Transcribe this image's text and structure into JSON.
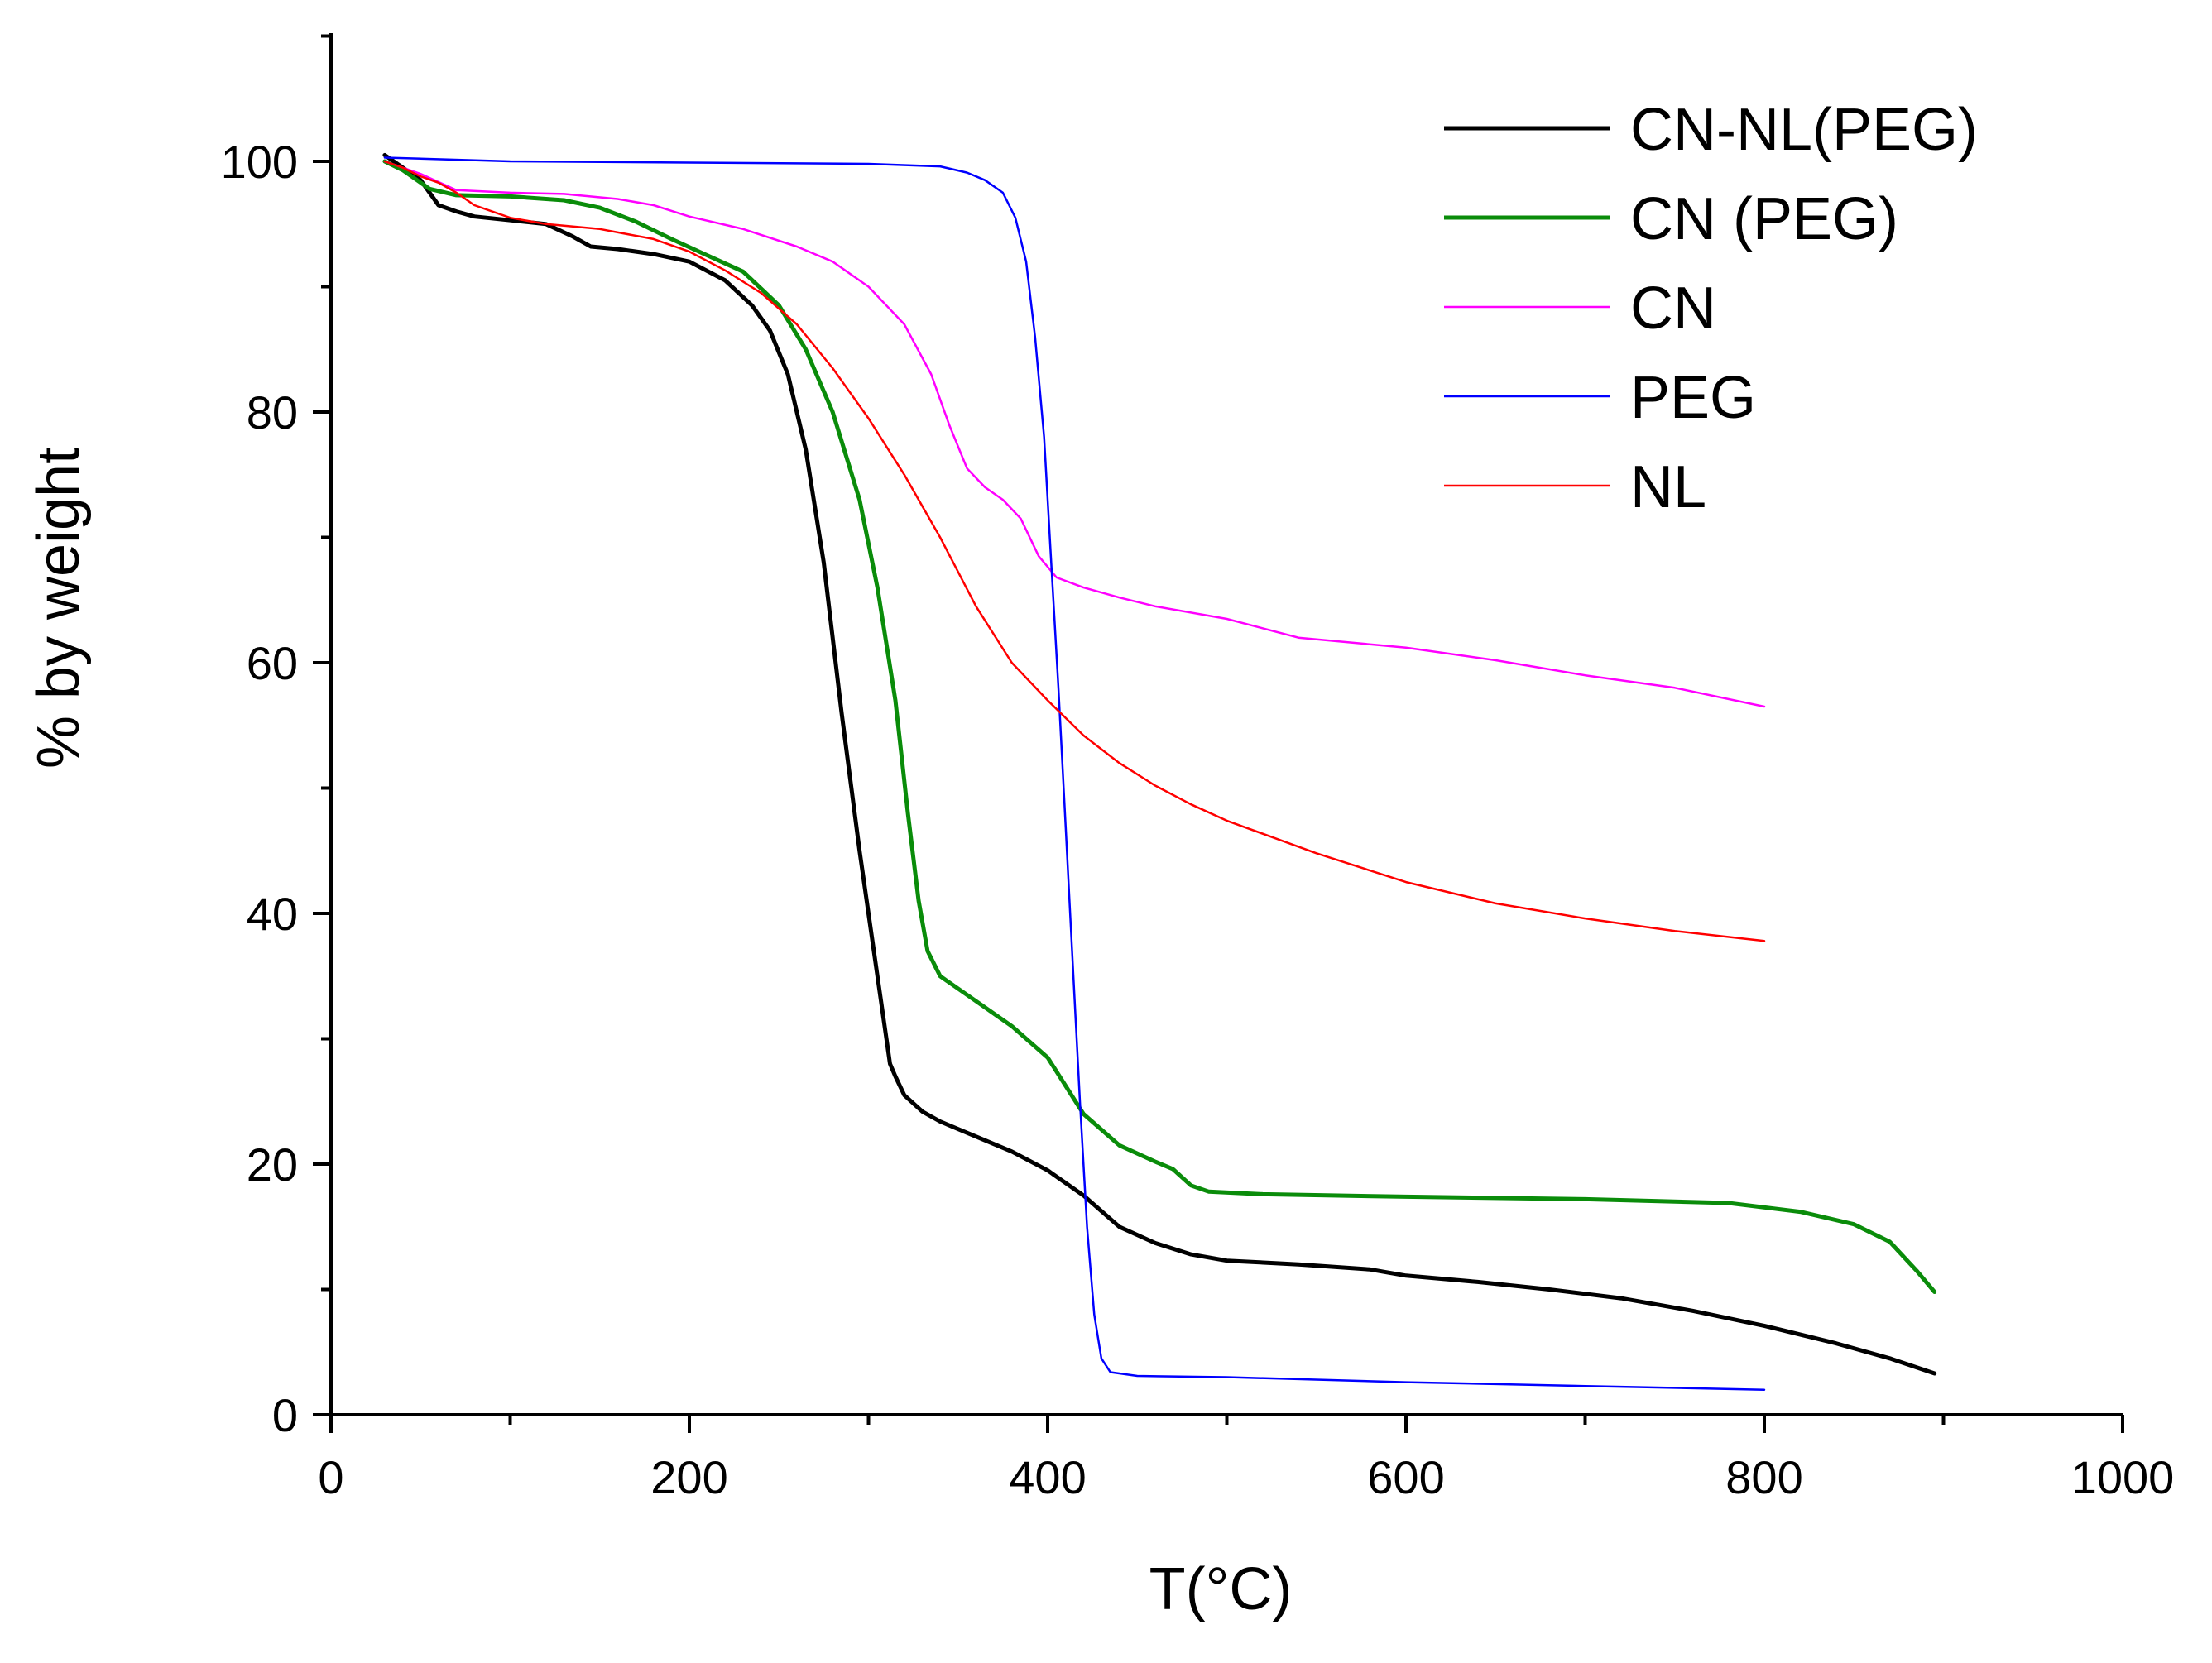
{
  "chart_data": {
    "type": "line",
    "title": "",
    "xlabel": "T(°C)",
    "ylabel": "% by weight",
    "xlim": [
      0,
      1000
    ],
    "ylim": [
      0,
      110
    ],
    "x_ticks": [
      0,
      200,
      400,
      600,
      800,
      1000
    ],
    "x_tick_labels": [
      "0",
      "200",
      "400",
      "600",
      "800",
      "1000"
    ],
    "y_ticks": [
      0,
      20,
      40,
      60,
      80,
      100
    ],
    "y_tick_labels": [
      "0",
      "20",
      "40",
      "60",
      "80",
      "100"
    ],
    "grid": false,
    "legend_position": "top-right",
    "series": [
      {
        "name": "CN-NL(PEG)",
        "color": "#000000",
        "weight": "thick",
        "points": [
          [
            30,
            100.5
          ],
          [
            40,
            99.5
          ],
          [
            50,
            98.5
          ],
          [
            60,
            96.5
          ],
          [
            70,
            96
          ],
          [
            80,
            95.6
          ],
          [
            100,
            95.3
          ],
          [
            120,
            95
          ],
          [
            135,
            94
          ],
          [
            145,
            93.2
          ],
          [
            160,
            93
          ],
          [
            180,
            92.6
          ],
          [
            200,
            92
          ],
          [
            220,
            90.5
          ],
          [
            235,
            88.5
          ],
          [
            245,
            86.5
          ],
          [
            255,
            83
          ],
          [
            265,
            77
          ],
          [
            275,
            68
          ],
          [
            285,
            56
          ],
          [
            295,
            45
          ],
          [
            305,
            35
          ],
          [
            312,
            28
          ],
          [
            315,
            27
          ],
          [
            320,
            25.5
          ],
          [
            330,
            24.2
          ],
          [
            340,
            23.4
          ],
          [
            360,
            22.2
          ],
          [
            380,
            21
          ],
          [
            400,
            19.5
          ],
          [
            420,
            17.5
          ],
          [
            440,
            15
          ],
          [
            460,
            13.7
          ],
          [
            480,
            12.8
          ],
          [
            500,
            12.3
          ],
          [
            540,
            12
          ],
          [
            580,
            11.6
          ],
          [
            600,
            11.1
          ],
          [
            640,
            10.6
          ],
          [
            680,
            10
          ],
          [
            720,
            9.3
          ],
          [
            760,
            8.3
          ],
          [
            800,
            7.1
          ],
          [
            840,
            5.7
          ],
          [
            870,
            4.5
          ],
          [
            895,
            3.3
          ]
        ]
      },
      {
        "name": "CN (PEG)",
        "color": "#0a8c0a",
        "weight": "thick",
        "points": [
          [
            30,
            100
          ],
          [
            40,
            99.3
          ],
          [
            55,
            97.8
          ],
          [
            70,
            97.3
          ],
          [
            100,
            97.2
          ],
          [
            130,
            96.9
          ],
          [
            150,
            96.3
          ],
          [
            170,
            95.2
          ],
          [
            190,
            93.8
          ],
          [
            210,
            92.5
          ],
          [
            230,
            91.2
          ],
          [
            250,
            88.5
          ],
          [
            265,
            85
          ],
          [
            280,
            80
          ],
          [
            295,
            73
          ],
          [
            305,
            66
          ],
          [
            315,
            57
          ],
          [
            322,
            48
          ],
          [
            328,
            41
          ],
          [
            333,
            37
          ],
          [
            340,
            35
          ],
          [
            360,
            33
          ],
          [
            380,
            31
          ],
          [
            400,
            28.5
          ],
          [
            420,
            24
          ],
          [
            440,
            21.5
          ],
          [
            460,
            20.2
          ],
          [
            470,
            19.6
          ],
          [
            480,
            18.3
          ],
          [
            490,
            17.8
          ],
          [
            520,
            17.6
          ],
          [
            600,
            17.4
          ],
          [
            700,
            17.2
          ],
          [
            780,
            16.9
          ],
          [
            820,
            16.2
          ],
          [
            850,
            15.2
          ],
          [
            870,
            13.8
          ],
          [
            885,
            11.5
          ],
          [
            895,
            9.8
          ]
        ]
      },
      {
        "name": "CN",
        "color": "#ff00ff",
        "weight": "thin",
        "points": [
          [
            30,
            100
          ],
          [
            50,
            99
          ],
          [
            70,
            97.7
          ],
          [
            100,
            97.5
          ],
          [
            130,
            97.4
          ],
          [
            160,
            97
          ],
          [
            180,
            96.5
          ],
          [
            200,
            95.6
          ],
          [
            230,
            94.6
          ],
          [
            260,
            93.2
          ],
          [
            280,
            92
          ],
          [
            300,
            90
          ],
          [
            320,
            87
          ],
          [
            335,
            83
          ],
          [
            345,
            79
          ],
          [
            355,
            75.5
          ],
          [
            365,
            74
          ],
          [
            375,
            73
          ],
          [
            385,
            71.5
          ],
          [
            395,
            68.5
          ],
          [
            405,
            66.8
          ],
          [
            420,
            66
          ],
          [
            440,
            65.2
          ],
          [
            460,
            64.5
          ],
          [
            500,
            63.5
          ],
          [
            540,
            62
          ],
          [
            600,
            61.2
          ],
          [
            650,
            60.2
          ],
          [
            700,
            59
          ],
          [
            750,
            58
          ],
          [
            800,
            56.5
          ]
        ]
      },
      {
        "name": "PEG",
        "color": "#0000ff",
        "weight": "thin",
        "points": [
          [
            30,
            100.3
          ],
          [
            100,
            100
          ],
          [
            200,
            99.9
          ],
          [
            300,
            99.8
          ],
          [
            340,
            99.6
          ],
          [
            355,
            99.1
          ],
          [
            365,
            98.5
          ],
          [
            375,
            97.5
          ],
          [
            382,
            95.5
          ],
          [
            388,
            92
          ],
          [
            393,
            86
          ],
          [
            398,
            78
          ],
          [
            402,
            68
          ],
          [
            406,
            58
          ],
          [
            410,
            47
          ],
          [
            414,
            36
          ],
          [
            418,
            25
          ],
          [
            422,
            15
          ],
          [
            426,
            8
          ],
          [
            430,
            4.5
          ],
          [
            435,
            3.4
          ],
          [
            450,
            3.1
          ],
          [
            500,
            3
          ],
          [
            600,
            2.6
          ],
          [
            700,
            2.3
          ],
          [
            800,
            2
          ]
        ]
      },
      {
        "name": "NL",
        "color": "#ff0000",
        "weight": "thin",
        "points": [
          [
            30,
            100
          ],
          [
            40,
            99.5
          ],
          [
            50,
            98.8
          ],
          [
            60,
            98.3
          ],
          [
            70,
            97.5
          ],
          [
            80,
            96.5
          ],
          [
            100,
            95.5
          ],
          [
            120,
            95
          ],
          [
            150,
            94.6
          ],
          [
            180,
            93.8
          ],
          [
            200,
            92.8
          ],
          [
            220,
            91.3
          ],
          [
            240,
            89.5
          ],
          [
            260,
            87
          ],
          [
            280,
            83.5
          ],
          [
            300,
            79.5
          ],
          [
            320,
            75
          ],
          [
            340,
            70
          ],
          [
            360,
            64.5
          ],
          [
            380,
            60
          ],
          [
            400,
            57
          ],
          [
            420,
            54.2
          ],
          [
            440,
            52
          ],
          [
            460,
            50.2
          ],
          [
            480,
            48.7
          ],
          [
            500,
            47.4
          ],
          [
            550,
            44.8
          ],
          [
            600,
            42.5
          ],
          [
            650,
            40.8
          ],
          [
            700,
            39.6
          ],
          [
            750,
            38.6
          ],
          [
            800,
            37.8
          ]
        ]
      }
    ]
  }
}
